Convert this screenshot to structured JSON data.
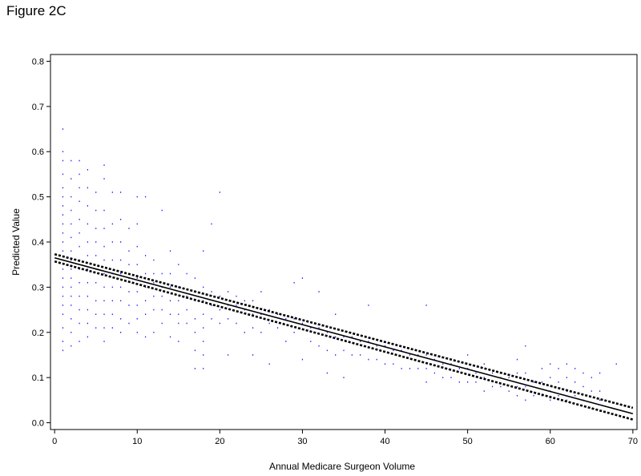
{
  "figure_title": "Figure 2C",
  "chart_data": {
    "type": "scatter",
    "title": "",
    "xlabel": "Annual Medicare Surgeon Volume",
    "ylabel": "Predicted Value",
    "xlim": [
      -0.5,
      70.5
    ],
    "ylim": [
      -0.015,
      0.815
    ],
    "x_ticks": [
      0,
      10,
      20,
      30,
      40,
      50,
      60,
      70
    ],
    "y_ticks": [
      0.0,
      0.1,
      0.2,
      0.3,
      0.4,
      0.5,
      0.6,
      0.7,
      0.8
    ],
    "x_tick_labels": [
      "0",
      "10",
      "20",
      "30",
      "40",
      "50",
      "60",
      "70"
    ],
    "y_tick_labels": [
      "0.0",
      "0.1",
      "0.2",
      "0.3",
      "0.4",
      "0.5",
      "0.6",
      "0.7",
      "0.8"
    ],
    "grid": false,
    "legend": "none",
    "point_color": "#1a1aff",
    "fit_line": {
      "x": [
        0,
        70
      ],
      "y": [
        0.365,
        0.02
      ],
      "color": "#000000"
    },
    "confidence_band": {
      "x": [
        0,
        70
      ],
      "upper": [
        0.373,
        0.033
      ],
      "lower": [
        0.357,
        0.007
      ],
      "style": "dotted"
    },
    "scatter_points": [
      [
        1,
        0.65
      ],
      [
        1,
        0.6
      ],
      [
        1,
        0.58
      ],
      [
        1,
        0.55
      ],
      [
        1,
        0.52
      ],
      [
        1,
        0.5
      ],
      [
        1,
        0.48
      ],
      [
        1,
        0.46
      ],
      [
        1,
        0.44
      ],
      [
        1,
        0.42
      ],
      [
        1,
        0.4
      ],
      [
        1,
        0.38
      ],
      [
        1,
        0.36
      ],
      [
        1,
        0.34
      ],
      [
        1,
        0.32
      ],
      [
        1,
        0.3
      ],
      [
        1,
        0.28
      ],
      [
        1,
        0.26
      ],
      [
        1,
        0.24
      ],
      [
        1,
        0.21
      ],
      [
        1,
        0.18
      ],
      [
        1,
        0.16
      ],
      [
        2,
        0.58
      ],
      [
        2,
        0.54
      ],
      [
        2,
        0.5
      ],
      [
        2,
        0.47
      ],
      [
        2,
        0.44
      ],
      [
        2,
        0.41
      ],
      [
        2,
        0.38
      ],
      [
        2,
        0.36
      ],
      [
        2,
        0.34
      ],
      [
        2,
        0.32
      ],
      [
        2,
        0.3
      ],
      [
        2,
        0.28
      ],
      [
        2,
        0.26
      ],
      [
        2,
        0.23
      ],
      [
        2,
        0.2
      ],
      [
        2,
        0.17
      ],
      [
        3,
        0.58
      ],
      [
        3,
        0.55
      ],
      [
        3,
        0.52
      ],
      [
        3,
        0.49
      ],
      [
        3,
        0.45
      ],
      [
        3,
        0.42
      ],
      [
        3,
        0.39
      ],
      [
        3,
        0.36
      ],
      [
        3,
        0.34
      ],
      [
        3,
        0.31
      ],
      [
        3,
        0.28
      ],
      [
        3,
        0.25
      ],
      [
        3,
        0.22
      ],
      [
        3,
        0.18
      ],
      [
        4,
        0.56
      ],
      [
        4,
        0.52
      ],
      [
        4,
        0.48
      ],
      [
        4,
        0.44
      ],
      [
        4,
        0.4
      ],
      [
        4,
        0.37
      ],
      [
        4,
        0.34
      ],
      [
        4,
        0.31
      ],
      [
        4,
        0.28
      ],
      [
        4,
        0.25
      ],
      [
        4,
        0.22
      ],
      [
        4,
        0.19
      ],
      [
        5,
        0.51
      ],
      [
        5,
        0.47
      ],
      [
        5,
        0.43
      ],
      [
        5,
        0.4
      ],
      [
        5,
        0.37
      ],
      [
        5,
        0.34
      ],
      [
        5,
        0.31
      ],
      [
        5,
        0.27
      ],
      [
        5,
        0.24
      ],
      [
        5,
        0.21
      ],
      [
        6,
        0.57
      ],
      [
        6,
        0.54
      ],
      [
        6,
        0.47
      ],
      [
        6,
        0.43
      ],
      [
        6,
        0.39
      ],
      [
        6,
        0.36
      ],
      [
        6,
        0.33
      ],
      [
        6,
        0.3
      ],
      [
        6,
        0.27
      ],
      [
        6,
        0.24
      ],
      [
        6,
        0.21
      ],
      [
        6,
        0.18
      ],
      [
        7,
        0.51
      ],
      [
        7,
        0.44
      ],
      [
        7,
        0.4
      ],
      [
        7,
        0.36
      ],
      [
        7,
        0.33
      ],
      [
        7,
        0.3
      ],
      [
        7,
        0.27
      ],
      [
        7,
        0.24
      ],
      [
        7,
        0.21
      ],
      [
        8,
        0.51
      ],
      [
        8,
        0.45
      ],
      [
        8,
        0.4
      ],
      [
        8,
        0.36
      ],
      [
        8,
        0.33
      ],
      [
        8,
        0.3
      ],
      [
        8,
        0.27
      ],
      [
        8,
        0.23
      ],
      [
        8,
        0.2
      ],
      [
        9,
        0.43
      ],
      [
        9,
        0.38
      ],
      [
        9,
        0.35
      ],
      [
        9,
        0.32
      ],
      [
        9,
        0.29
      ],
      [
        9,
        0.26
      ],
      [
        9,
        0.22
      ],
      [
        10,
        0.5
      ],
      [
        10,
        0.44
      ],
      [
        10,
        0.39
      ],
      [
        10,
        0.35
      ],
      [
        10,
        0.32
      ],
      [
        10,
        0.29
      ],
      [
        10,
        0.26
      ],
      [
        10,
        0.23
      ],
      [
        10,
        0.2
      ],
      [
        11,
        0.5
      ],
      [
        11,
        0.37
      ],
      [
        11,
        0.33
      ],
      [
        11,
        0.3
      ],
      [
        11,
        0.27
      ],
      [
        11,
        0.24
      ],
      [
        11,
        0.19
      ],
      [
        12,
        0.36
      ],
      [
        12,
        0.33
      ],
      [
        12,
        0.31
      ],
      [
        12,
        0.28
      ],
      [
        12,
        0.25
      ],
      [
        12,
        0.2
      ],
      [
        13,
        0.47
      ],
      [
        13,
        0.33
      ],
      [
        13,
        0.3
      ],
      [
        13,
        0.28
      ],
      [
        13,
        0.25
      ],
      [
        13,
        0.22
      ],
      [
        14,
        0.38
      ],
      [
        14,
        0.33
      ],
      [
        14,
        0.3
      ],
      [
        14,
        0.27
      ],
      [
        14,
        0.24
      ],
      [
        14,
        0.19
      ],
      [
        15,
        0.35
      ],
      [
        15,
        0.3
      ],
      [
        15,
        0.27
      ],
      [
        15,
        0.24
      ],
      [
        15,
        0.22
      ],
      [
        15,
        0.18
      ],
      [
        16,
        0.33
      ],
      [
        16,
        0.28
      ],
      [
        16,
        0.25
      ],
      [
        16,
        0.22
      ],
      [
        17,
        0.32
      ],
      [
        17,
        0.27
      ],
      [
        17,
        0.23
      ],
      [
        17,
        0.2
      ],
      [
        17,
        0.16
      ],
      [
        17,
        0.12
      ],
      [
        18,
        0.38
      ],
      [
        18,
        0.3
      ],
      [
        18,
        0.27
      ],
      [
        18,
        0.24
      ],
      [
        18,
        0.21
      ],
      [
        18,
        0.18
      ],
      [
        18,
        0.15
      ],
      [
        18,
        0.12
      ],
      [
        19,
        0.44
      ],
      [
        19,
        0.29
      ],
      [
        19,
        0.26
      ],
      [
        19,
        0.23
      ],
      [
        20,
        0.51
      ],
      [
        20,
        0.28
      ],
      [
        20,
        0.25
      ],
      [
        20,
        0.22
      ],
      [
        21,
        0.29
      ],
      [
        21,
        0.26
      ],
      [
        21,
        0.23
      ],
      [
        21,
        0.15
      ],
      [
        22,
        0.28
      ],
      [
        22,
        0.26
      ],
      [
        22,
        0.22
      ],
      [
        23,
        0.27
      ],
      [
        23,
        0.25
      ],
      [
        23,
        0.2
      ],
      [
        24,
        0.27
      ],
      [
        24,
        0.24
      ],
      [
        24,
        0.21
      ],
      [
        24,
        0.15
      ],
      [
        25,
        0.29
      ],
      [
        25,
        0.24
      ],
      [
        25,
        0.2
      ],
      [
        26,
        0.25
      ],
      [
        26,
        0.22
      ],
      [
        26,
        0.13
      ],
      [
        27,
        0.24
      ],
      [
        27,
        0.21
      ],
      [
        28,
        0.23
      ],
      [
        28,
        0.18
      ],
      [
        29,
        0.31
      ],
      [
        29,
        0.23
      ],
      [
        29,
        0.2
      ],
      [
        30,
        0.32
      ],
      [
        30,
        0.22
      ],
      [
        30,
        0.14
      ],
      [
        31,
        0.21
      ],
      [
        31,
        0.18
      ],
      [
        32,
        0.29
      ],
      [
        32,
        0.21
      ],
      [
        32,
        0.17
      ],
      [
        33,
        0.2
      ],
      [
        33,
        0.16
      ],
      [
        33,
        0.11
      ],
      [
        34,
        0.24
      ],
      [
        34,
        0.19
      ],
      [
        34,
        0.15
      ],
      [
        35,
        0.19
      ],
      [
        35,
        0.16
      ],
      [
        35,
        0.1
      ],
      [
        36,
        0.19
      ],
      [
        36,
        0.15
      ],
      [
        37,
        0.18
      ],
      [
        37,
        0.15
      ],
      [
        38,
        0.26
      ],
      [
        38,
        0.18
      ],
      [
        38,
        0.14
      ],
      [
        39,
        0.17
      ],
      [
        39,
        0.14
      ],
      [
        40,
        0.17
      ],
      [
        40,
        0.13
      ],
      [
        41,
        0.16
      ],
      [
        41,
        0.13
      ],
      [
        42,
        0.16
      ],
      [
        42,
        0.12
      ],
      [
        43,
        0.15
      ],
      [
        43,
        0.12
      ],
      [
        44,
        0.15
      ],
      [
        44,
        0.12
      ],
      [
        45,
        0.26
      ],
      [
        45,
        0.15
      ],
      [
        45,
        0.12
      ],
      [
        45,
        0.09
      ],
      [
        46,
        0.14
      ],
      [
        46,
        0.11
      ],
      [
        47,
        0.13
      ],
      [
        47,
        0.1
      ],
      [
        48,
        0.13
      ],
      [
        48,
        0.1
      ],
      [
        49,
        0.12
      ],
      [
        49,
        0.09
      ],
      [
        50,
        0.15
      ],
      [
        50,
        0.12
      ],
      [
        50,
        0.09
      ],
      [
        51,
        0.11
      ],
      [
        51,
        0.09
      ],
      [
        52,
        0.13
      ],
      [
        52,
        0.1
      ],
      [
        52,
        0.07
      ],
      [
        53,
        0.11
      ],
      [
        53,
        0.08
      ],
      [
        54,
        0.1
      ],
      [
        54,
        0.08
      ],
      [
        55,
        0.1
      ],
      [
        55,
        0.07
      ],
      [
        56,
        0.14
      ],
      [
        56,
        0.11
      ],
      [
        56,
        0.08
      ],
      [
        56,
        0.06
      ],
      [
        57,
        0.17
      ],
      [
        57,
        0.11
      ],
      [
        57,
        0.08
      ],
      [
        57,
        0.05
      ],
      [
        58,
        0.09
      ],
      [
        58,
        0.06
      ],
      [
        59,
        0.12
      ],
      [
        59,
        0.09
      ],
      [
        59,
        0.06
      ],
      [
        60,
        0.13
      ],
      [
        60,
        0.1
      ],
      [
        60,
        0.07
      ],
      [
        60,
        0.05
      ],
      [
        61,
        0.12
      ],
      [
        61,
        0.09
      ],
      [
        61,
        0.06
      ],
      [
        62,
        0.13
      ],
      [
        62,
        0.1
      ],
      [
        62,
        0.07
      ],
      [
        62,
        0.05
      ],
      [
        63,
        0.12
      ],
      [
        63,
        0.09
      ],
      [
        63,
        0.06
      ],
      [
        64,
        0.11
      ],
      [
        64,
        0.08
      ],
      [
        64,
        0.05
      ],
      [
        65,
        0.1
      ],
      [
        65,
        0.07
      ],
      [
        66,
        0.11
      ],
      [
        66,
        0.07
      ],
      [
        66,
        0.05
      ],
      [
        68,
        0.13
      ]
    ]
  }
}
